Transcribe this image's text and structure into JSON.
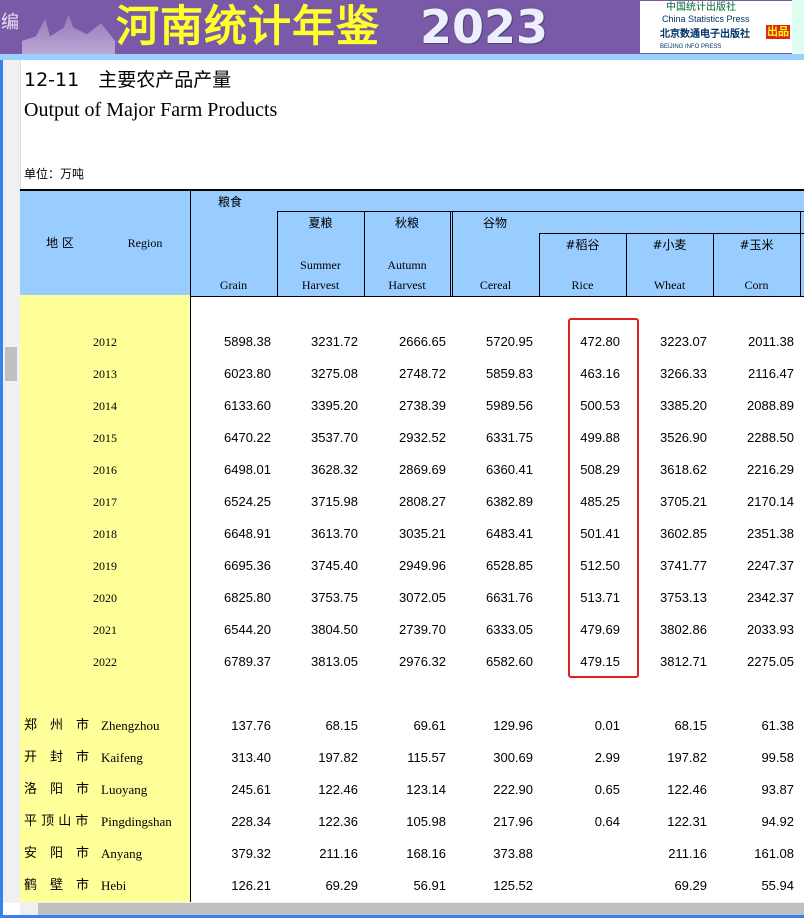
{
  "banner": {
    "left_text": "编",
    "title": "河南统计年鉴",
    "year": "2023",
    "publisher1_cn": "中国统计出版社",
    "publisher1_en": "China Statistics Press",
    "publisher2_cn": "北京数通电子出版社",
    "publisher2_en": "BEIJING INFO PRESS",
    "badge": "出品"
  },
  "table_title_cn": "12-11　主要农产品产量",
  "table_title_en": "Output of Major Farm Products",
  "unit": "单位：万吨",
  "headers": {
    "region_cn": "地 区",
    "region_en": "Region",
    "grain_cn": "粮食",
    "grain_en": "Grain",
    "summer_cn": "夏粮",
    "summer_en1": "Summer",
    "summer_en2": "Harvest",
    "autumn_cn": "秋粮",
    "autumn_en1": "Autumn",
    "autumn_en2": "Harvest",
    "cereal_cn": "谷物",
    "cereal_en": "Cereal",
    "rice_cn": "#稻谷",
    "rice_en": "Rice",
    "wheat_cn": "#小麦",
    "wheat_en": "Wheat",
    "corn_cn": "#玉米",
    "corn_en": "Corn"
  },
  "highlight_color": "#e02020",
  "years": [
    {
      "year": "2012",
      "v": [
        "5898.38",
        "3231.72",
        "2666.65",
        "5720.95",
        "472.80",
        "3223.07",
        "2011.38"
      ]
    },
    {
      "year": "2013",
      "v": [
        "6023.80",
        "3275.08",
        "2748.72",
        "5859.83",
        "463.16",
        "3266.33",
        "2116.47"
      ]
    },
    {
      "year": "2014",
      "v": [
        "6133.60",
        "3395.20",
        "2738.39",
        "5989.56",
        "500.53",
        "3385.20",
        "2088.89"
      ]
    },
    {
      "year": "2015",
      "v": [
        "6470.22",
        "3537.70",
        "2932.52",
        "6331.75",
        "499.88",
        "3526.90",
        "2288.50"
      ]
    },
    {
      "year": "2016",
      "v": [
        "6498.01",
        "3628.32",
        "2869.69",
        "6360.41",
        "508.29",
        "3618.62",
        "2216.29"
      ]
    },
    {
      "year": "2017",
      "v": [
        "6524.25",
        "3715.98",
        "2808.27",
        "6382.89",
        "485.25",
        "3705.21",
        "2170.14"
      ]
    },
    {
      "year": "2018",
      "v": [
        "6648.91",
        "3613.70",
        "3035.21",
        "6483.41",
        "501.41",
        "3602.85",
        "2351.38"
      ]
    },
    {
      "year": "2019",
      "v": [
        "6695.36",
        "3745.40",
        "2949.96",
        "6528.85",
        "512.50",
        "3741.77",
        "2247.37"
      ]
    },
    {
      "year": "2020",
      "v": [
        "6825.80",
        "3753.75",
        "3072.05",
        "6631.76",
        "513.71",
        "3753.13",
        "2342.37"
      ]
    },
    {
      "year": "2021",
      "v": [
        "6544.20",
        "3804.50",
        "2739.70",
        "6333.05",
        "479.69",
        "3802.86",
        "2033.93"
      ]
    },
    {
      "year": "2022",
      "v": [
        "6789.37",
        "3813.05",
        "2976.32",
        "6582.60",
        "479.15",
        "3812.71",
        "2275.05"
      ]
    }
  ],
  "cities": [
    {
      "cn": "郑　州　市",
      "en": "Zhengzhou",
      "v": [
        "137.76",
        "68.15",
        "69.61",
        "129.96",
        "0.01",
        "68.15",
        "61.38"
      ]
    },
    {
      "cn": "开　封　市",
      "en": "Kaifeng",
      "v": [
        "313.40",
        "197.82",
        "115.57",
        "300.69",
        "2.99",
        "197.82",
        "99.58"
      ]
    },
    {
      "cn": "洛　阳　市",
      "en": "Luoyang",
      "v": [
        "245.61",
        "122.46",
        "123.14",
        "222.90",
        "0.65",
        "122.46",
        "93.87"
      ]
    },
    {
      "cn": "平 顶 山 市",
      "en": "Pingdingshan",
      "v": [
        "228.34",
        "122.36",
        "105.98",
        "217.96",
        "0.64",
        "122.31",
        "94.92"
      ]
    },
    {
      "cn": "安　阳　市",
      "en": "Anyang",
      "v": [
        "379.32",
        "211.16",
        "168.16",
        "373.88",
        "",
        "211.16",
        "161.08"
      ]
    },
    {
      "cn": "鹤　壁　市",
      "en": "Hebi",
      "v": [
        "126.21",
        "69.29",
        "56.91",
        "125.52",
        "",
        "69.29",
        "55.94"
      ]
    }
  ]
}
